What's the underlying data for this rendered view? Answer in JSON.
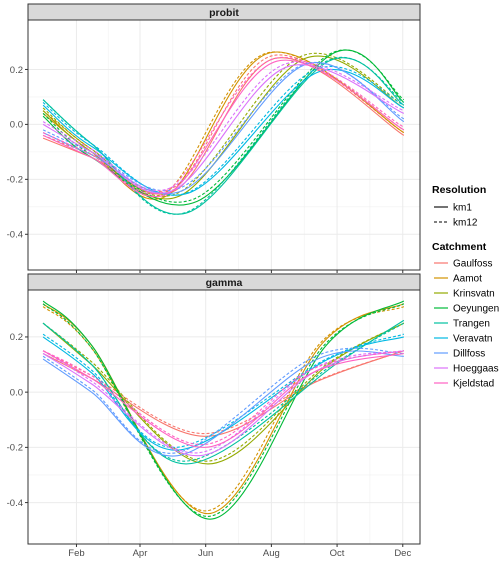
{
  "chart_data": {
    "type": "line",
    "x_tick_labels": [
      "Feb",
      "Apr",
      "Jun",
      "Aug",
      "Oct",
      "Dec"
    ],
    "x_ticks": [
      46,
      105,
      166,
      227,
      288,
      349
    ],
    "xlim": [
      1,
      365
    ],
    "grid": true,
    "legend_position": "right",
    "legends": {
      "resolution": {
        "title": "Resolution",
        "entries": [
          {
            "label": "km1",
            "linetype": "solid"
          },
          {
            "label": "km12",
            "linetype": "dashed"
          }
        ]
      },
      "catchment": {
        "title": "Catchment",
        "entries": [
          {
            "label": "Gaulfoss",
            "color": "#F8766D"
          },
          {
            "label": "Aamot",
            "color": "#D39200"
          },
          {
            "label": "Krinsvatn",
            "color": "#93AA00"
          },
          {
            "label": "Oeyungen",
            "color": "#00BA38"
          },
          {
            "label": "Trangen",
            "color": "#00C19F"
          },
          {
            "label": "Veravatn",
            "color": "#00B9E3"
          },
          {
            "label": "Dillfoss",
            "color": "#619CFF"
          },
          {
            "label": "Hoeggaas",
            "color": "#DB72FB"
          },
          {
            "label": "Kjeldstad",
            "color": "#FF61C3"
          }
        ]
      }
    },
    "panels": [
      {
        "title": "probit",
        "ylim": [
          -0.53,
          0.38
        ],
        "y_ticks": [
          -0.4,
          -0.2,
          0.0,
          0.2
        ],
        "y_tick_labels": [
          "-0.4",
          "-0.2",
          "0.0",
          "0.2"
        ],
        "series": [
          {
            "catchment": "Gaulfoss",
            "resolution": "km1",
            "color": "#F8766D",
            "x": [
              15,
              60,
              138,
              230,
              350
            ],
            "y": [
              -0.05,
              -0.12,
              -0.24,
              0.24,
              -0.04
            ]
          },
          {
            "catchment": "Gaulfoss",
            "resolution": "km12",
            "color": "#F8766D",
            "x": [
              15,
              60,
              136,
              228,
              350
            ],
            "y": [
              -0.04,
              -0.11,
              -0.23,
              0.25,
              -0.03
            ]
          },
          {
            "catchment": "Aamot",
            "resolution": "km1",
            "color": "#D39200",
            "x": [
              15,
              60,
              130,
              225,
              350
            ],
            "y": [
              0.04,
              -0.1,
              -0.26,
              0.26,
              -0.03
            ]
          },
          {
            "catchment": "Aamot",
            "resolution": "km12",
            "color": "#D39200",
            "x": [
              15,
              60,
              128,
              223,
              350
            ],
            "y": [
              0.05,
              -0.09,
              -0.25,
              0.26,
              -0.02
            ]
          },
          {
            "catchment": "Krinsvatn",
            "resolution": "km1",
            "color": "#93AA00",
            "x": [
              15,
              60,
              142,
              258,
              350
            ],
            "y": [
              0.05,
              -0.1,
              -0.26,
              0.24,
              0.06
            ]
          },
          {
            "catchment": "Krinsvatn",
            "resolution": "km12",
            "color": "#93AA00",
            "x": [
              15,
              60,
              140,
              256,
              350
            ],
            "y": [
              0.06,
              -0.09,
              -0.25,
              0.25,
              0.07
            ]
          },
          {
            "catchment": "Oeyungen",
            "resolution": "km1",
            "color": "#00BA38",
            "x": [
              15,
              60,
              158,
              285,
              350
            ],
            "y": [
              0.03,
              -0.12,
              -0.28,
              0.26,
              0.08
            ]
          },
          {
            "catchment": "Oeyungen",
            "resolution": "km12",
            "color": "#00BA38",
            "x": [
              15,
              60,
              156,
              283,
              350
            ],
            "y": [
              0.04,
              -0.11,
              -0.27,
              0.26,
              0.09
            ]
          },
          {
            "catchment": "Trangen",
            "resolution": "km1",
            "color": "#00C19F",
            "x": [
              15,
              60,
              150,
              280,
              350
            ],
            "y": [
              0.09,
              -0.07,
              -0.32,
              0.23,
              0.07
            ]
          },
          {
            "catchment": "Trangen",
            "resolution": "km12",
            "color": "#00C19F",
            "x": [
              15,
              60,
              148,
              278,
              350
            ],
            "y": [
              0.09,
              -0.07,
              -0.32,
              0.23,
              0.08
            ]
          },
          {
            "catchment": "Veravatn",
            "resolution": "km1",
            "color": "#00B9E3",
            "x": [
              15,
              60,
              150,
              270,
              350
            ],
            "y": [
              0.07,
              -0.08,
              -0.25,
              0.19,
              0.06
            ]
          },
          {
            "catchment": "Veravatn",
            "resolution": "km12",
            "color": "#00B9E3",
            "x": [
              15,
              60,
              148,
              268,
              350
            ],
            "y": [
              0.08,
              -0.07,
              -0.25,
              0.2,
              0.07
            ]
          },
          {
            "catchment": "Dillfoss",
            "resolution": "km1",
            "color": "#619CFF",
            "x": [
              15,
              60,
              145,
              260,
              350
            ],
            "y": [
              -0.03,
              -0.11,
              -0.24,
              0.22,
              0.01
            ]
          },
          {
            "catchment": "Dillfoss",
            "resolution": "km12",
            "color": "#619CFF",
            "x": [
              15,
              60,
              143,
              258,
              350
            ],
            "y": [
              -0.02,
              -0.1,
              -0.23,
              0.22,
              0.02
            ]
          },
          {
            "catchment": "Hoeggaas",
            "resolution": "km1",
            "color": "#DB72FB",
            "x": [
              15,
              60,
              136,
              242,
              350
            ],
            "y": [
              0.0,
              -0.1,
              -0.24,
              0.21,
              0.04
            ]
          },
          {
            "catchment": "Hoeggaas",
            "resolution": "km12",
            "color": "#DB72FB",
            "x": [
              15,
              60,
              134,
              240,
              350
            ],
            "y": [
              0.01,
              -0.09,
              -0.23,
              0.22,
              0.05
            ]
          },
          {
            "catchment": "Kjeldstad",
            "resolution": "km1",
            "color": "#FF61C3",
            "x": [
              15,
              60,
              132,
              232,
              350
            ],
            "y": [
              -0.04,
              -0.12,
              -0.25,
              0.23,
              -0.02
            ]
          },
          {
            "catchment": "Kjeldstad",
            "resolution": "km12",
            "color": "#FF61C3",
            "x": [
              15,
              60,
              130,
              230,
              350
            ],
            "y": [
              -0.03,
              -0.11,
              -0.24,
              0.24,
              -0.01
            ]
          }
        ]
      },
      {
        "title": "gamma",
        "ylim": [
          -0.55,
          0.37
        ],
        "y_ticks": [
          -0.4,
          -0.2,
          0.0,
          0.2
        ],
        "y_tick_labels": [
          "-0.4",
          "-0.2",
          "0.0",
          "0.2"
        ],
        "series": [
          {
            "catchment": "Gaulfoss",
            "resolution": "km1",
            "color": "#F8766D",
            "x": [
              15,
              60,
              165,
              270,
              350
            ],
            "y": [
              0.14,
              0.05,
              -0.16,
              0.04,
              0.15
            ]
          },
          {
            "catchment": "Gaulfoss",
            "resolution": "km12",
            "color": "#F8766D",
            "x": [
              15,
              60,
              163,
              268,
              350
            ],
            "y": [
              0.15,
              0.06,
              -0.15,
              0.04,
              0.15
            ]
          },
          {
            "catchment": "Aamot",
            "resolution": "km1",
            "color": "#D39200",
            "x": [
              15,
              60,
              168,
              275,
              350
            ],
            "y": [
              0.32,
              0.17,
              -0.44,
              0.18,
              0.32
            ]
          },
          {
            "catchment": "Aamot",
            "resolution": "km12",
            "color": "#D39200",
            "x": [
              15,
              60,
              166,
              273,
              350
            ],
            "y": [
              0.31,
              0.16,
              -0.43,
              0.18,
              0.31
            ]
          },
          {
            "catchment": "Krinsvatn",
            "resolution": "km1",
            "color": "#93AA00",
            "x": [
              15,
              60,
              168,
              280,
              350
            ],
            "y": [
              0.25,
              0.1,
              -0.26,
              0.1,
              0.25
            ]
          },
          {
            "catchment": "Krinsvatn",
            "resolution": "km12",
            "color": "#93AA00",
            "x": [
              15,
              60,
              166,
              278,
              350
            ],
            "y": [
              0.25,
              0.11,
              -0.25,
              0.1,
              0.25
            ]
          },
          {
            "catchment": "Oeyungen",
            "resolution": "km1",
            "color": "#00BA38",
            "x": [
              15,
              60,
              170,
              278,
              350
            ],
            "y": [
              0.33,
              0.17,
              -0.46,
              0.17,
              0.33
            ]
          },
          {
            "catchment": "Oeyungen",
            "resolution": "km12",
            "color": "#00BA38",
            "x": [
              15,
              60,
              168,
              276,
              350
            ],
            "y": [
              0.32,
              0.16,
              -0.45,
              0.17,
              0.32
            ]
          },
          {
            "catchment": "Trangen",
            "resolution": "km1",
            "color": "#00C19F",
            "x": [
              15,
              60,
              148,
              290,
              350
            ],
            "y": [
              0.25,
              0.1,
              -0.26,
              0.11,
              0.26
            ]
          },
          {
            "catchment": "Trangen",
            "resolution": "km12",
            "color": "#00C19F",
            "x": [
              15,
              60,
              146,
              288,
              350
            ],
            "y": [
              0.25,
              0.1,
              -0.25,
              0.11,
              0.25
            ]
          },
          {
            "catchment": "Veravatn",
            "resolution": "km1",
            "color": "#00B9E3",
            "x": [
              15,
              60,
              140,
              280,
              350
            ],
            "y": [
              0.2,
              0.07,
              -0.21,
              0.12,
              0.2
            ]
          },
          {
            "catchment": "Veravatn",
            "resolution": "km12",
            "color": "#00B9E3",
            "x": [
              15,
              60,
              138,
              278,
              350
            ],
            "y": [
              0.21,
              0.08,
              -0.2,
              0.12,
              0.21
            ]
          },
          {
            "catchment": "Dillfoss",
            "resolution": "km1",
            "color": "#619CFF",
            "x": [
              15,
              60,
              140,
              270,
              350
            ],
            "y": [
              0.12,
              0.0,
              -0.23,
              0.12,
              0.13
            ]
          },
          {
            "catchment": "Dillfoss",
            "resolution": "km12",
            "color": "#619CFF",
            "x": [
              15,
              60,
              138,
              268,
              350
            ],
            "y": [
              0.13,
              0.01,
              -0.22,
              0.13,
              0.14
            ]
          },
          {
            "catchment": "Hoeggaas",
            "resolution": "km1",
            "color": "#DB72FB",
            "x": [
              15,
              60,
              160,
              270,
              350
            ],
            "y": [
              0.14,
              0.03,
              -0.23,
              0.08,
              0.15
            ]
          },
          {
            "catchment": "Hoeggaas",
            "resolution": "km12",
            "color": "#DB72FB",
            "x": [
              15,
              60,
              158,
              268,
              350
            ],
            "y": [
              0.15,
              0.04,
              -0.22,
              0.09,
              0.15
            ]
          },
          {
            "catchment": "Kjeldstad",
            "resolution": "km1",
            "color": "#FF61C3",
            "x": [
              15,
              60,
              165,
              265,
              350
            ],
            "y": [
              0.15,
              0.05,
              -0.2,
              0.07,
              0.14
            ]
          },
          {
            "catchment": "Kjeldstad",
            "resolution": "km12",
            "color": "#FF61C3",
            "x": [
              15,
              60,
              163,
              263,
              350
            ],
            "y": [
              0.15,
              0.06,
              -0.19,
              0.08,
              0.15
            ]
          }
        ]
      }
    ]
  }
}
